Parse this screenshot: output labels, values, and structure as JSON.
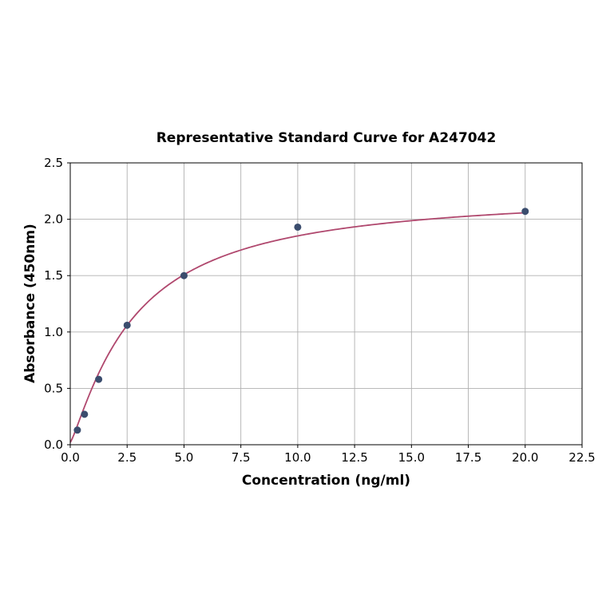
{
  "chart_data": {
    "type": "scatter",
    "title": "Representative Standard Curve for A247042",
    "xlabel": "Concentration (ng/ml)",
    "ylabel": "Absorbance (450nm)",
    "xlim": [
      0,
      22.5
    ],
    "ylim": [
      0,
      2.5
    ],
    "xticks": [
      0,
      2.5,
      5,
      7.5,
      10,
      12.5,
      15,
      17.5,
      20,
      22.5
    ],
    "xtick_labels": [
      "0.0",
      "2.5",
      "5.0",
      "7.5",
      "10.0",
      "12.5",
      "15.0",
      "17.5",
      "20.0",
      "22.5"
    ],
    "yticks": [
      0,
      0.5,
      1,
      1.5,
      2,
      2.5
    ],
    "ytick_labels": [
      "0.0",
      "0.5",
      "1.0",
      "1.5",
      "2.0",
      "2.5"
    ],
    "grid": true,
    "legend": "none",
    "series": [
      {
        "name": "standard-points",
        "type": "scatter",
        "x": [
          0.3125,
          0.625,
          1.25,
          2.5,
          5,
          10,
          20
        ],
        "y": [
          0.13,
          0.27,
          0.58,
          1.06,
          1.5,
          1.93,
          2.07
        ]
      },
      {
        "name": "fit-curve",
        "type": "line",
        "model": "4pl",
        "params": {
          "a": 0.02,
          "b": 1.2,
          "c": 2.8,
          "d": 2.25
        },
        "x_range": [
          0,
          20
        ]
      }
    ],
    "colors": {
      "points": "#3b4d6e",
      "curve": "#b0486e",
      "grid": "#b0b0b0",
      "axis": "#000000",
      "text": "#000000"
    }
  }
}
